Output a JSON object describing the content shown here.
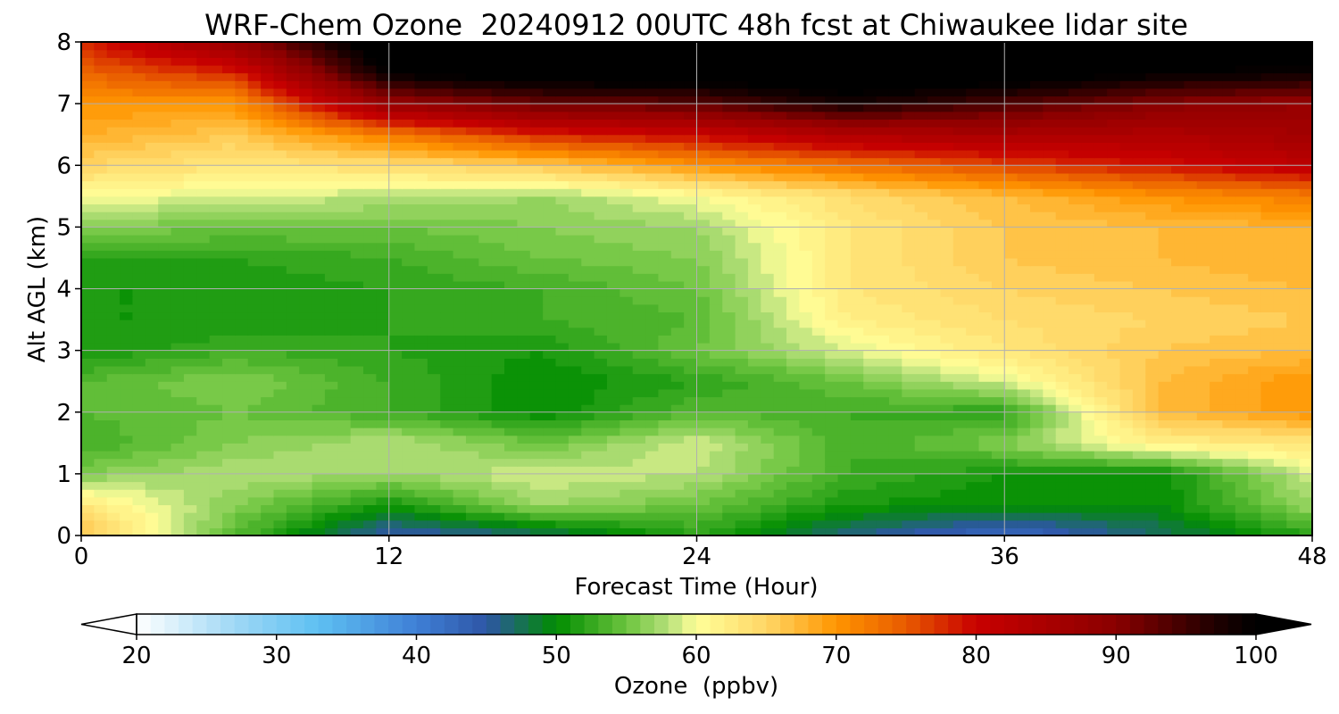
{
  "chart_data": {
    "type": "heatmap",
    "title": "WRF-Chem Ozone  20240912 00UTC 48h fcst at Chiwaukee lidar site",
    "xlabel": "Forecast Time (Hour)",
    "ylabel": "Alt AGL (km)",
    "xlim": [
      0,
      48
    ],
    "ylim": [
      0,
      8
    ],
    "x_ticks": [
      0,
      12,
      24,
      36,
      48
    ],
    "y_ticks": [
      0,
      1,
      2,
      3,
      4,
      5,
      6,
      7,
      8
    ],
    "grid": true,
    "x": [
      0,
      6,
      12,
      18,
      24,
      30,
      36,
      42,
      48
    ],
    "y": [
      0,
      0.5,
      1,
      1.5,
      2,
      2.5,
      3,
      3.5,
      4,
      4.5,
      5,
      5.5,
      6,
      6.5,
      7,
      7.5,
      8
    ],
    "z": [
      [
        67,
        54,
        44,
        47,
        52,
        46,
        42,
        47,
        52
      ],
      [
        63,
        56,
        51,
        57,
        55,
        51,
        50,
        50,
        57
      ],
      [
        56,
        58,
        57,
        59,
        58,
        53,
        51,
        50,
        59
      ],
      [
        53,
        56,
        58,
        55,
        59,
        53,
        56,
        62,
        63
      ],
      [
        54,
        55,
        53,
        50,
        54,
        53,
        52,
        67,
        70
      ],
      [
        54,
        56,
        53,
        50,
        52,
        55,
        59,
        67,
        70
      ],
      [
        51,
        53,
        52,
        51,
        55,
        59,
        63,
        66,
        67
      ],
      [
        51,
        51,
        52,
        53,
        54,
        62,
        64,
        65,
        66
      ],
      [
        51,
        51,
        52,
        53,
        55,
        63,
        65,
        66,
        67
      ],
      [
        52,
        52,
        53,
        55,
        56,
        63,
        66,
        67,
        68
      ],
      [
        56,
        55,
        55,
        56,
        57,
        63,
        66,
        67,
        68
      ],
      [
        60,
        59,
        58,
        57,
        60,
        64,
        67,
        70,
        72
      ],
      [
        65,
        63,
        64,
        66,
        70,
        73,
        76,
        79,
        82
      ],
      [
        68,
        66,
        72,
        78,
        80,
        84,
        85,
        84,
        86
      ],
      [
        70,
        70,
        88,
        92,
        93,
        98,
        94,
        90,
        88
      ],
      [
        74,
        78,
        100,
        103,
        103,
        104,
        103,
        100,
        99
      ],
      [
        78,
        88,
        104,
        105,
        105,
        105,
        105,
        104,
        103
      ]
    ],
    "colorbar": {
      "label": "Ozone  (ppbv)",
      "min": 20,
      "max": 100,
      "step": 1,
      "ticks": [
        20,
        30,
        40,
        50,
        60,
        70,
        80,
        90,
        100
      ],
      "extend": "both",
      "colors": [
        [
          20,
          "#ffffff"
        ],
        [
          27,
          "#9fd8f5"
        ],
        [
          33,
          "#5ec0f2"
        ],
        [
          40,
          "#3f7fd6"
        ],
        [
          45,
          "#2e56a6"
        ],
        [
          50,
          "#008c00"
        ],
        [
          55,
          "#6cc43e"
        ],
        [
          58,
          "#b5e07a"
        ],
        [
          60,
          "#ffff99"
        ],
        [
          65,
          "#ffd666"
        ],
        [
          70,
          "#ff9500"
        ],
        [
          75,
          "#e85a00"
        ],
        [
          80,
          "#c80000"
        ],
        [
          90,
          "#8a0000"
        ],
        [
          97,
          "#200000"
        ],
        [
          100,
          "#000000"
        ]
      ]
    }
  }
}
